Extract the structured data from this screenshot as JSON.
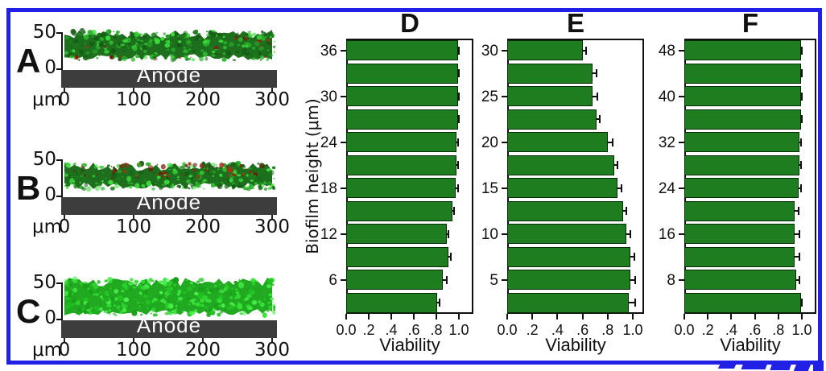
{
  "figure": {
    "border_color": "#2121e6",
    "background": "#ffffff"
  },
  "colors": {
    "bar_green": "#1e7d1e",
    "bar_outline": "#062b06",
    "anode_gray": "#3d3d3d",
    "axis_black": "#111111",
    "biofilm_greens": [
      "#1d7a1d",
      "#2bb52b",
      "#3ddd3d",
      "#145c14"
    ],
    "biofilm_bright_greens": [
      "#22c522",
      "#35e435",
      "#4bf04b",
      "#1a9e1a"
    ],
    "biofilm_red": [
      "#8c1f0c",
      "#a33414",
      "#6e1607"
    ],
    "watermark_blue": "#2121e6"
  },
  "micrograph_panels": [
    {
      "label": "A",
      "y_axis": {
        "top": "50",
        "bottom": "0",
        "unit": "μm"
      },
      "x_ticks": [
        "0",
        "100",
        "200",
        "300"
      ],
      "electrode_label": "Anode",
      "appearance": "green biofilm band with scattered red (dead) cells near base and right end"
    },
    {
      "label": "B",
      "y_axis": {
        "top": "50",
        "bottom": "0",
        "unit": "μm"
      },
      "x_ticks": [
        "0",
        "100",
        "200",
        "300"
      ],
      "electrode_label": "Anode",
      "appearance": "thin green biofilm with red (dead) cell patches along the upper surface"
    },
    {
      "label": "C",
      "y_axis": {
        "top": "50",
        "bottom": "0",
        "unit": "μm"
      },
      "x_ticks": [
        "0",
        "100",
        "200",
        "300"
      ],
      "electrode_label": "Anode",
      "appearance": "thick uniform bright green (live) biofilm"
    }
  ],
  "charts_shared": {
    "y_axis_label": "Biofilm height (μm)"
  },
  "chart_data": [
    {
      "type": "bar",
      "orientation": "horizontal",
      "title": "D",
      "xlabel": "Viability",
      "ylabel": "Biofilm height (μm)",
      "xlim": [
        0.0,
        1.13
      ],
      "x_ticks": [
        0.0,
        0.2,
        0.4,
        0.6,
        0.8,
        1.0
      ],
      "x_tick_labels": [
        "0.0",
        ".2",
        ".4",
        ".6",
        ".8",
        "1.0"
      ],
      "row_order": "top-to-bottom",
      "categories_um": [
        36,
        33,
        30,
        27,
        24,
        21,
        18,
        15,
        12,
        9,
        6,
        3
      ],
      "y_tick_labels": [
        "36",
        "30",
        "24",
        "18",
        "12",
        "6"
      ],
      "values": [
        0.99,
        0.99,
        0.99,
        0.99,
        0.98,
        0.98,
        0.97,
        0.94,
        0.89,
        0.91,
        0.86,
        0.81
      ],
      "errors": [
        0.01,
        0.01,
        0.01,
        0.01,
        0.01,
        0.01,
        0.02,
        0.02,
        0.02,
        0.02,
        0.03,
        0.02
      ]
    },
    {
      "type": "bar",
      "orientation": "horizontal",
      "title": "E",
      "xlabel": "Viability",
      "ylabel": "Biofilm height (μm)",
      "xlim": [
        0.0,
        1.09
      ],
      "x_ticks": [
        0.0,
        0.2,
        0.4,
        0.6,
        0.8,
        1.0
      ],
      "x_tick_labels": [
        "0.0",
        ".2",
        ".4",
        ".6",
        ".8",
        "1.0"
      ],
      "row_order": "top-to-bottom",
      "categories_um": [
        30,
        27.5,
        25,
        22.5,
        20,
        17.5,
        15,
        12.5,
        10,
        7.5,
        5,
        2.5
      ],
      "y_tick_labels": [
        "30",
        "25",
        "20",
        "15",
        "10",
        "5"
      ],
      "values": [
        0.6,
        0.68,
        0.68,
        0.71,
        0.8,
        0.85,
        0.88,
        0.92,
        0.95,
        0.98,
        0.98,
        0.97
      ],
      "errors": [
        0.03,
        0.03,
        0.04,
        0.03,
        0.04,
        0.03,
        0.03,
        0.03,
        0.03,
        0.03,
        0.04,
        0.05
      ]
    },
    {
      "type": "bar",
      "orientation": "horizontal",
      "title": "F",
      "xlabel": "Viability",
      "ylabel": "Biofilm height (μm)",
      "xlim": [
        0.0,
        1.12
      ],
      "x_ticks": [
        0.0,
        0.2,
        0.4,
        0.6,
        0.8,
        1.0
      ],
      "x_tick_labels": [
        "0.0",
        ".2",
        ".4",
        ".6",
        ".8",
        "1.0"
      ],
      "row_order": "top-to-bottom",
      "categories_um": [
        48,
        44,
        40,
        36,
        32,
        28,
        24,
        20,
        16,
        12,
        8,
        4
      ],
      "y_tick_labels": [
        "48",
        "40",
        "32",
        "24",
        "16",
        "8"
      ],
      "values": [
        0.99,
        0.99,
        0.99,
        0.99,
        0.98,
        0.98,
        0.97,
        0.94,
        0.94,
        0.94,
        0.95,
        0.99
      ],
      "errors": [
        0.01,
        0.01,
        0.01,
        0.01,
        0.01,
        0.01,
        0.02,
        0.03,
        0.04,
        0.04,
        0.03,
        0.01
      ]
    }
  ]
}
